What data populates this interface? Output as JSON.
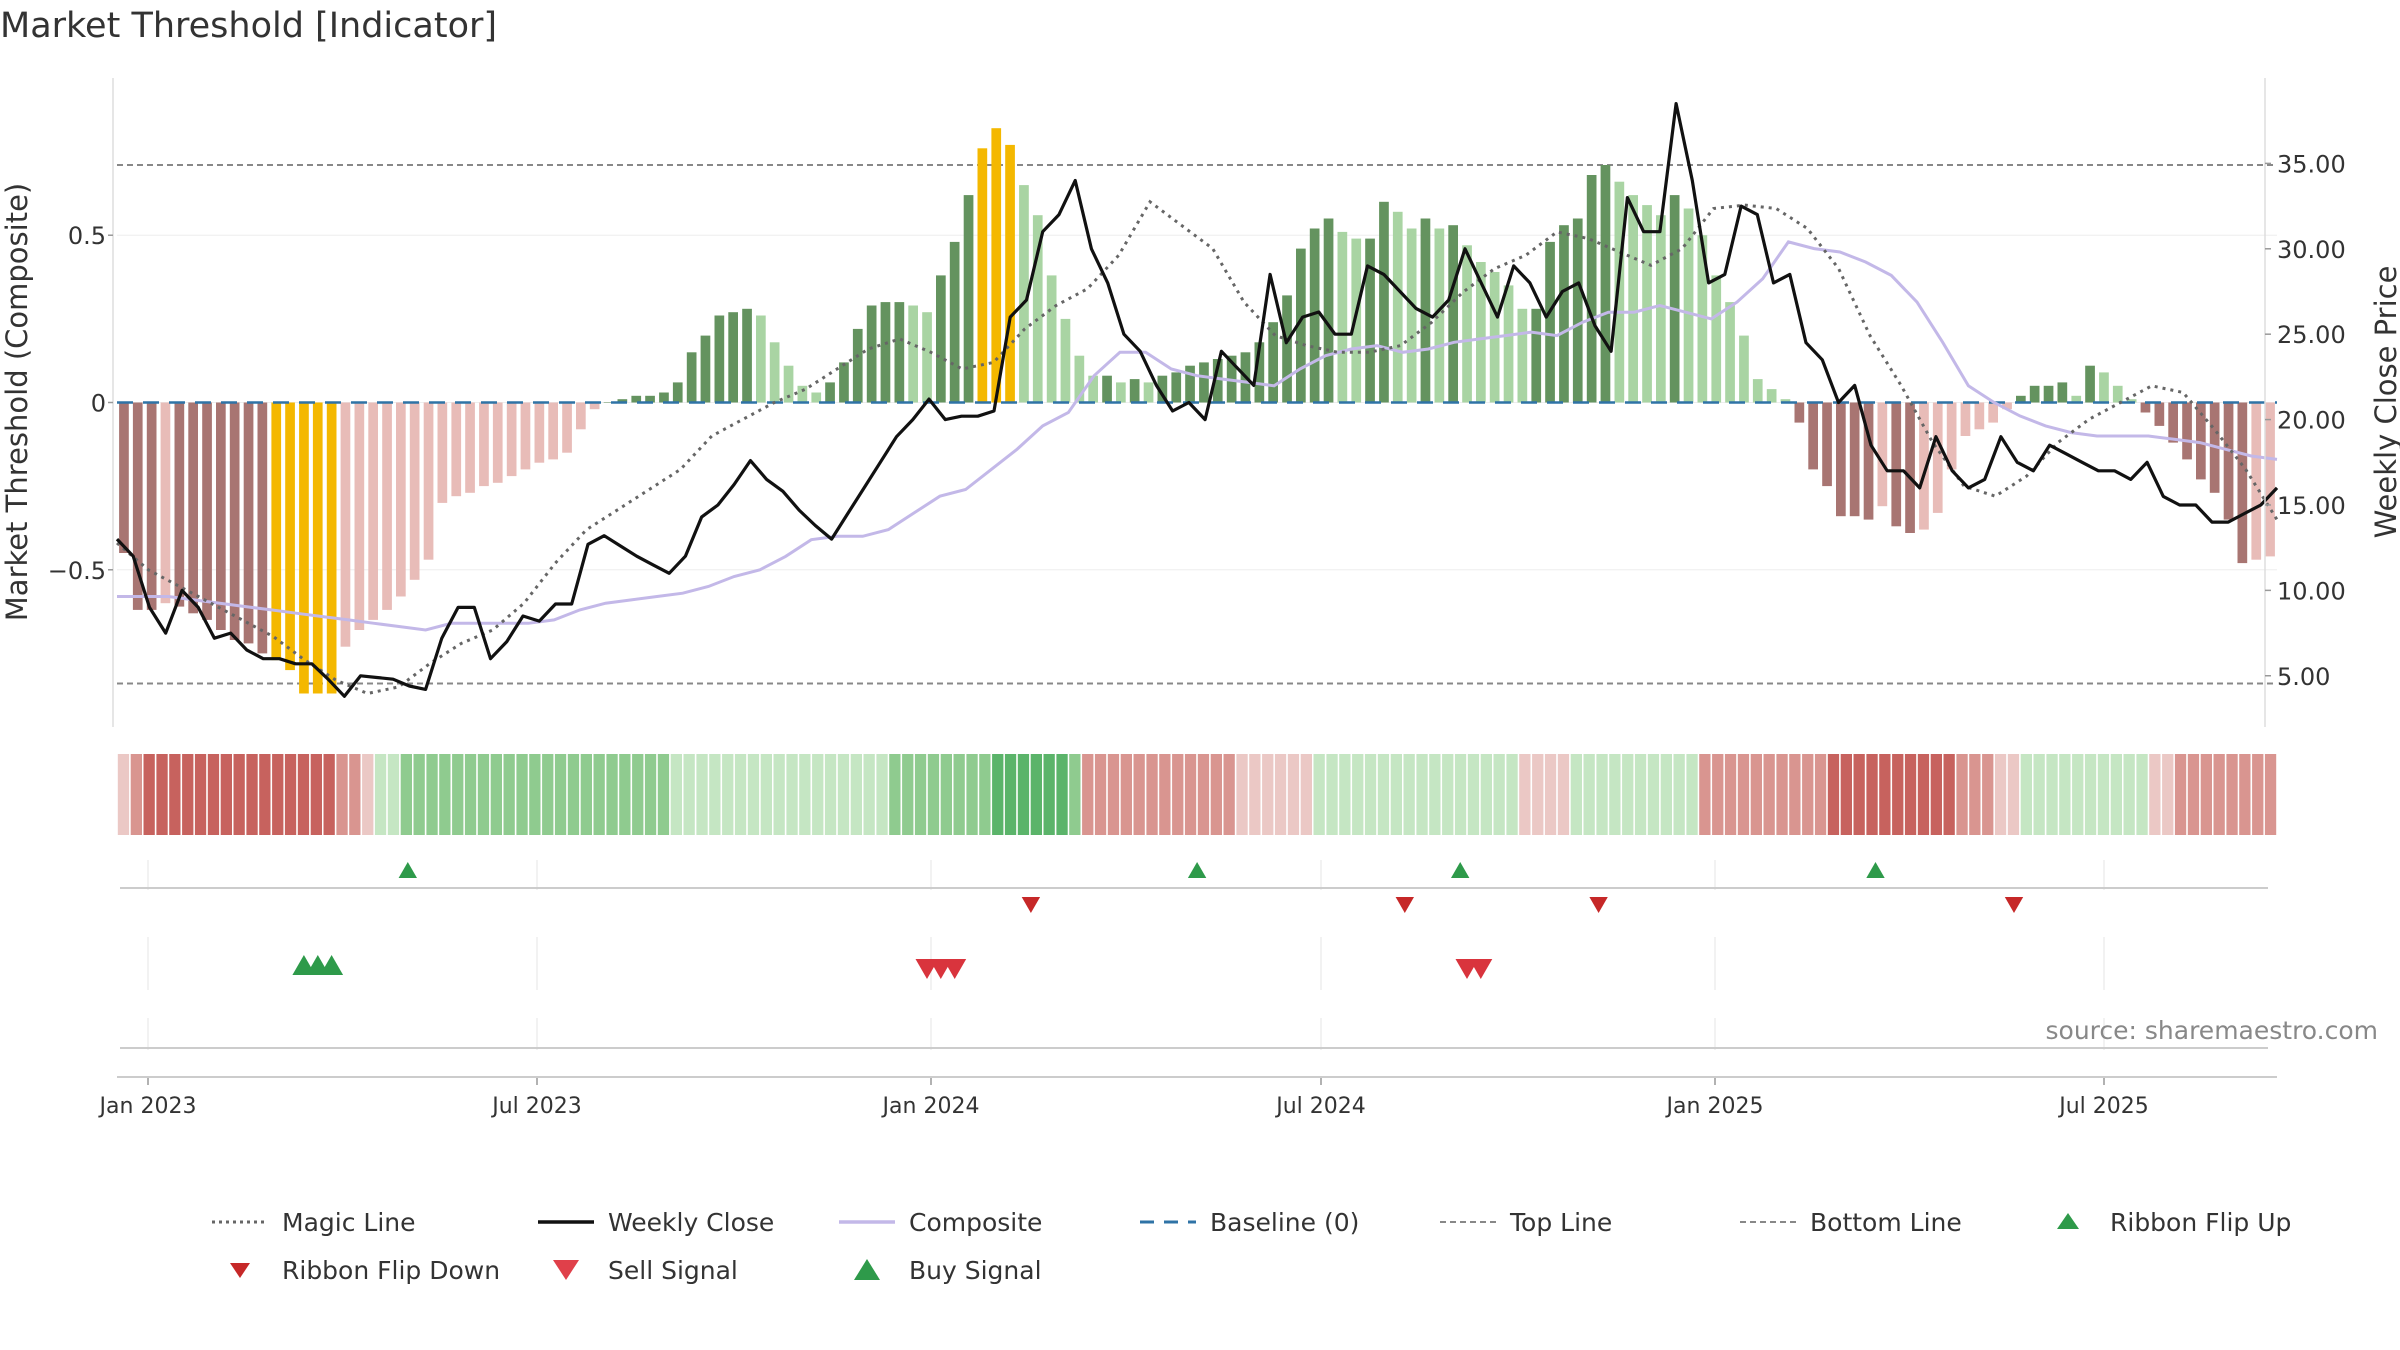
{
  "title": "Market Threshold [Indicator]",
  "source_note": "source: sharemaestro.com",
  "colors": {
    "bar_dark_red": "#a87572",
    "bar_light_red": "#e8bcb8",
    "bar_dark_green": "#64935f",
    "bar_light_green": "#a9d4a3",
    "bar_yellow": "#f4b800",
    "close": "#111111",
    "composite": "#c3b8e8",
    "magic": "#666666",
    "baseline": "#2f73a6",
    "thresholds": "#888888",
    "buy": "#2e9a4a",
    "sell": "#d9343d",
    "flip_up": "#2e9a4a",
    "flip_down": "#c62828"
  },
  "chart_data": {
    "type": "bar",
    "x_tick_labels": [
      "Jan 2023",
      "Jul 2023",
      "Jan 2024",
      "Jul 2024",
      "Jan 2025",
      "Jul 2025"
    ],
    "left_axis": {
      "label": "Market Threshold (Composite)",
      "tick_labels": [
        "0.5",
        "0",
        "−0.5"
      ],
      "ylim": [
        -0.97,
        0.97
      ]
    },
    "right_axis": {
      "label": "Weekly Close Price",
      "tick_labels": [
        "35.00",
        "30.00",
        "25.00",
        "20.00",
        "15.00",
        "10.00",
        "5.00"
      ],
      "ylim": [
        2,
        40
      ]
    },
    "top_line": 0.71,
    "bottom_line": -0.84,
    "baseline": 0,
    "composite_bars": [
      -0.45,
      -0.62,
      -0.62,
      -0.6,
      -0.61,
      -0.63,
      -0.65,
      -0.68,
      -0.71,
      -0.72,
      -0.75,
      -0.77,
      -0.8,
      -0.87,
      -0.87,
      -0.87,
      -0.73,
      -0.68,
      -0.65,
      -0.62,
      -0.58,
      -0.53,
      -0.47,
      -0.3,
      -0.28,
      -0.27,
      -0.25,
      -0.24,
      -0.22,
      -0.2,
      -0.18,
      -0.17,
      -0.15,
      -0.08,
      -0.02,
      0,
      0.01,
      0.02,
      0.02,
      0.03,
      0.06,
      0.15,
      0.2,
      0.26,
      0.27,
      0.28,
      0.26,
      0.18,
      0.11,
      0.05,
      0.03,
      0.06,
      0.12,
      0.22,
      0.29,
      0.3,
      0.3,
      0.29,
      0.27,
      0.38,
      0.48,
      0.62,
      0.76,
      0.82,
      0.77,
      0.65,
      0.56,
      0.38,
      0.25,
      0.14,
      0.08,
      0.08,
      0.06,
      0.07,
      0.06,
      0.08,
      0.09,
      0.11,
      0.12,
      0.13,
      0.14,
      0.15,
      0.18,
      0.24,
      0.32,
      0.46,
      0.52,
      0.55,
      0.51,
      0.49,
      0.49,
      0.6,
      0.57,
      0.52,
      0.55,
      0.52,
      0.53,
      0.47,
      0.42,
      0.39,
      0.35,
      0.28,
      0.28,
      0.48,
      0.53,
      0.55,
      0.68,
      0.71,
      0.66,
      0.62,
      0.59,
      0.56,
      0.62,
      0.58,
      0.5,
      0.38,
      0.3,
      0.2,
      0.07,
      0.04,
      0.01,
      -0.06,
      -0.2,
      -0.25,
      -0.34,
      -0.34,
      -0.35,
      -0.31,
      -0.37,
      -0.39,
      -0.38,
      -0.33,
      -0.2,
      -0.1,
      -0.08,
      -0.06,
      -0.02,
      0.02,
      0.05,
      0.05,
      0.06,
      0.02,
      0.11,
      0.09,
      0.05,
      0.01,
      -0.03,
      -0.07,
      -0.12,
      -0.17,
      -0.23,
      -0.27,
      -0.35,
      -0.48,
      -0.47,
      -0.46
    ],
    "weekly_close": [
      13.0,
      12.0,
      9.0,
      7.5,
      10.0,
      9.0,
      7.2,
      7.5,
      6.5,
      6.0,
      6.0,
      5.7,
      5.7,
      4.8,
      3.8,
      5.0,
      4.9,
      4.8,
      4.4,
      4.2,
      7.2,
      9.0,
      9.0,
      6.0,
      7.0,
      8.5,
      8.2,
      9.2,
      9.2,
      12.7,
      13.2,
      12.6,
      12.0,
      11.5,
      11.0,
      12.0,
      14.3,
      15.0,
      16.2,
      17.6,
      16.5,
      15.8,
      14.7,
      13.8,
      13.0,
      14.5,
      16.0,
      17.5,
      19.0,
      20.0,
      21.2,
      20.0,
      20.2,
      20.2,
      20.5,
      26.0,
      27.0,
      31.0,
      32.0,
      34.0,
      30.0,
      28.0,
      25.0,
      24.0,
      22.0,
      20.5,
      21.0,
      20.0,
      24.0,
      23.0,
      22.0,
      28.5,
      24.5,
      26.0,
      26.3,
      25.0,
      25.0,
      29.0,
      28.5,
      27.5,
      26.5,
      26.0,
      27.0,
      30.0,
      28.0,
      26.0,
      29.0,
      28.0,
      26.0,
      27.5,
      28.0,
      25.5,
      24.0,
      33.0,
      31.0,
      31.0,
      38.5,
      34.0,
      28.0,
      28.5,
      32.5,
      32.0,
      28.0,
      28.5,
      24.5,
      23.5,
      21.0,
      22.0,
      18.5,
      17.0,
      17.0,
      16.0,
      19.0,
      17.0,
      16.0,
      16.5,
      19.0,
      17.5,
      17.0,
      18.5,
      18.0,
      17.5,
      17.0,
      17.0,
      16.5,
      17.5,
      15.5,
      15.0,
      15.0,
      14.0,
      14.0,
      14.5,
      15.0,
      16.0
    ],
    "composite_line": [
      -0.58,
      -0.58,
      -0.58,
      -0.59,
      -0.6,
      -0.61,
      -0.62,
      -0.63,
      -0.64,
      -0.65,
      -0.66,
      -0.67,
      -0.68,
      -0.66,
      -0.66,
      -0.66,
      -0.66,
      -0.65,
      -0.62,
      -0.6,
      -0.59,
      -0.58,
      -0.57,
      -0.55,
      -0.52,
      -0.5,
      -0.46,
      -0.41,
      -0.4,
      -0.4,
      -0.38,
      -0.33,
      -0.28,
      -0.26,
      -0.2,
      -0.14,
      -0.07,
      -0.03,
      0.08,
      0.15,
      0.15,
      0.1,
      0.08,
      0.07,
      0.06,
      0.05,
      0.1,
      0.14,
      0.16,
      0.17,
      0.15,
      0.16,
      0.18,
      0.19,
      0.2,
      0.21,
      0.2,
      0.24,
      0.27,
      0.27,
      0.29,
      0.27,
      0.25,
      0.3,
      0.37,
      0.48,
      0.46,
      0.45,
      0.42,
      0.38,
      0.3,
      0.18,
      0.05,
      0.0,
      -0.04,
      -0.07,
      -0.09,
      -0.1,
      -0.1,
      -0.1,
      -0.11,
      -0.12,
      -0.14,
      -0.16,
      -0.17
    ],
    "magic_line": [
      -0.42,
      -0.5,
      -0.55,
      -0.6,
      -0.65,
      -0.7,
      -0.77,
      -0.83,
      -0.87,
      -0.85,
      -0.78,
      -0.72,
      -0.68,
      -0.6,
      -0.48,
      -0.38,
      -0.32,
      -0.26,
      -0.2,
      -0.1,
      -0.05,
      0.0,
      0.04,
      0.1,
      0.16,
      0.19,
      0.15,
      0.1,
      0.12,
      0.22,
      0.29,
      0.34,
      0.44,
      0.6,
      0.53,
      0.46,
      0.3,
      0.2,
      0.17,
      0.15,
      0.15,
      0.17,
      0.24,
      0.33,
      0.4,
      0.44,
      0.51,
      0.49,
      0.45,
      0.41,
      0.46,
      0.58,
      0.59,
      0.58,
      0.52,
      0.4,
      0.2,
      0.05,
      -0.12,
      -0.25,
      -0.28,
      -0.22,
      -0.12,
      -0.05,
      0.0,
      0.05,
      0.03,
      -0.08,
      -0.2,
      -0.35
    ],
    "ribbon": [
      -1,
      -2,
      -3,
      -3,
      -3,
      -3,
      -3,
      -3,
      -3,
      -3,
      -3,
      -3,
      -3,
      -3,
      -3,
      -3,
      -3,
      -2,
      -2,
      -1,
      1,
      1,
      2,
      2,
      2,
      2,
      2,
      2,
      2,
      2,
      2,
      2,
      2,
      2,
      2,
      2,
      2,
      2,
      2,
      2,
      2,
      2,
      2,
      1,
      1,
      1,
      1,
      1,
      1,
      1,
      1,
      1,
      1,
      1,
      1,
      1,
      1,
      1,
      1,
      1,
      2,
      2,
      2,
      2,
      2,
      2,
      2,
      2,
      3,
      3,
      3,
      3,
      3,
      3,
      2,
      -2,
      -2,
      -2,
      -2,
      -2,
      -2,
      -2,
      -2,
      -2,
      -2,
      -2,
      -2,
      -1,
      -1,
      -1,
      -1,
      -1,
      -1,
      1,
      1,
      1,
      1,
      1,
      1,
      1,
      1,
      1,
      1,
      1,
      1,
      1,
      1,
      1,
      1,
      -1,
      -1,
      -1,
      -1,
      1,
      1,
      1,
      1,
      1,
      1,
      1,
      1,
      1,
      1,
      -2,
      -2,
      -2,
      -2,
      -2,
      -2,
      -2,
      -2,
      -2,
      -2,
      -3,
      -3,
      -3,
      -3,
      -3,
      -3,
      -3,
      -3,
      -3,
      -3,
      -2,
      -2,
      -2,
      -1,
      -1,
      1,
      1,
      1,
      1,
      1,
      1,
      1,
      1,
      1,
      1,
      -1,
      -1,
      -2,
      -2,
      -2,
      -2,
      -2,
      -2,
      -2,
      -2
    ],
    "ribbon_flip_up_weeks": [
      20,
      77,
      96,
      126
    ],
    "ribbon_flip_down_weeks": [
      65,
      92,
      106,
      136
    ],
    "buy_signal_weeks": [
      13,
      14,
      15
    ],
    "sell_signal_weeks": [
      58,
      59,
      60,
      97,
      98
    ],
    "legend": [
      "Magic Line",
      "Weekly Close",
      "Composite",
      "Baseline (0)",
      "Top Line",
      "Bottom Line",
      "Ribbon Flip Up",
      "Ribbon Flip Down",
      "Sell Signal",
      "Buy Signal"
    ]
  }
}
